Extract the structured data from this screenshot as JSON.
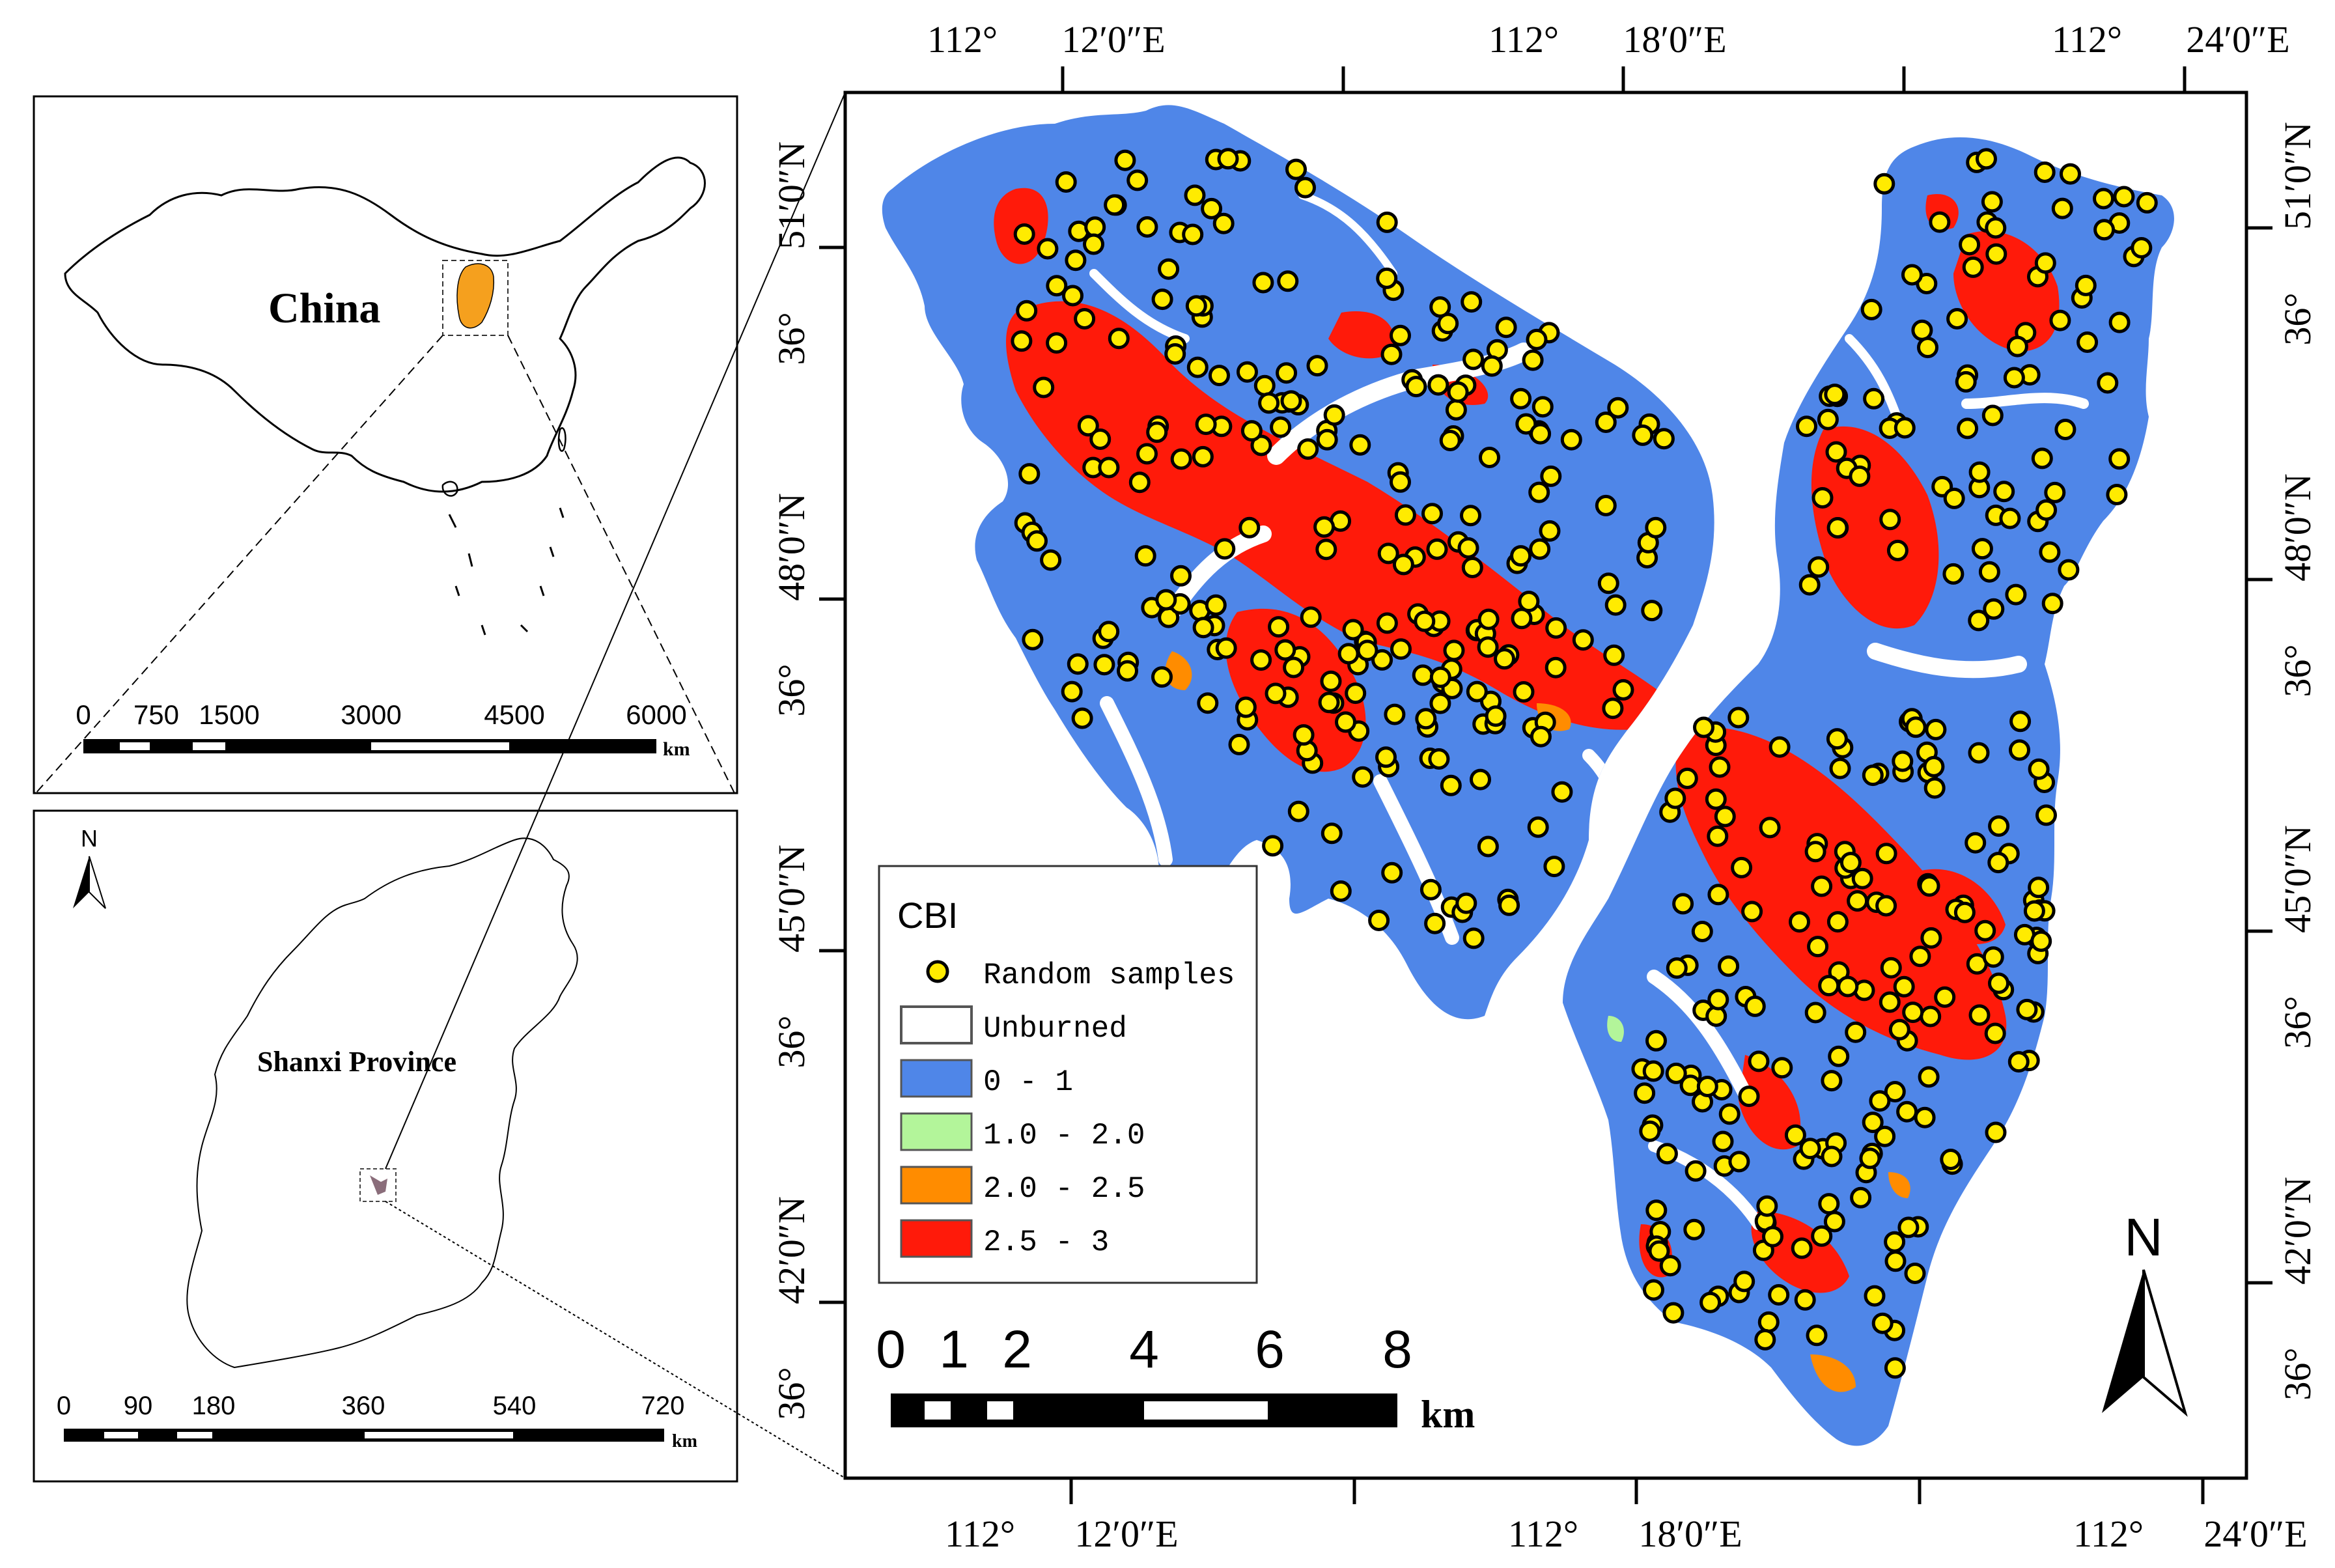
{
  "colors": {
    "unburned": "#ffffff",
    "class_0_1": "#4f86e8",
    "class_1_2": "#b3f59a",
    "class_2_25": "#ff8c00",
    "class_25_3": "#ff1a0a",
    "sample_fill": "#ffeb00",
    "sample_stroke": "#000000",
    "shanxi_fill": "#f5a01e"
  },
  "china_panel": {
    "country_label": "China",
    "scale_ticks": [
      "0",
      "750",
      "1500",
      "3000",
      "4500",
      "6000"
    ],
    "scale_unit": "km"
  },
  "shanxi_panel": {
    "north_label": "N",
    "province_label": "Shanxi Province",
    "scale_ticks": [
      "0",
      "90",
      "180",
      "360",
      "540",
      "720"
    ],
    "scale_unit": "km"
  },
  "main_map": {
    "top_labels": [
      {
        "deg": "112°",
        "min": "12′0″E"
      },
      {
        "deg": "112°",
        "min": "18′0″E"
      },
      {
        "deg": "112°",
        "min": "24′0″E"
      }
    ],
    "bottom_labels": [
      {
        "deg": "112°",
        "min": "12′0″E"
      },
      {
        "deg": "112°",
        "min": "18′0″E"
      },
      {
        "deg": "112°",
        "min": "24′0″E"
      }
    ],
    "left_labels": [
      {
        "deg": "36°",
        "min": "51′0″N"
      },
      {
        "deg": "36°",
        "min": "48′0″N"
      },
      {
        "deg": "36°",
        "min": "45′0″N"
      },
      {
        "deg": "36°",
        "min": "42′0″N"
      }
    ],
    "right_labels": [
      {
        "deg": "36°",
        "min": "51′0″N"
      },
      {
        "deg": "36°",
        "min": "48′0″N"
      },
      {
        "deg": "36°",
        "min": "45′0″N"
      },
      {
        "deg": "36°",
        "min": "42′0″N"
      }
    ],
    "north_label": "N",
    "scale_ticks": [
      "0",
      "1",
      "2",
      "4",
      "6",
      "8"
    ],
    "scale_unit": "km",
    "legend": {
      "title": "CBI",
      "samples_label": "Random samples",
      "items": [
        {
          "label": "Unburned",
          "color_key": "unburned"
        },
        {
          "label": "0 - 1",
          "color_key": "class_0_1"
        },
        {
          "label": "1.0 - 2.0",
          "color_key": "class_1_2"
        },
        {
          "label": "2.0 - 2.5",
          "color_key": "class_2_25"
        },
        {
          "label": "2.5 - 3",
          "color_key": "class_25_3"
        }
      ]
    }
  }
}
